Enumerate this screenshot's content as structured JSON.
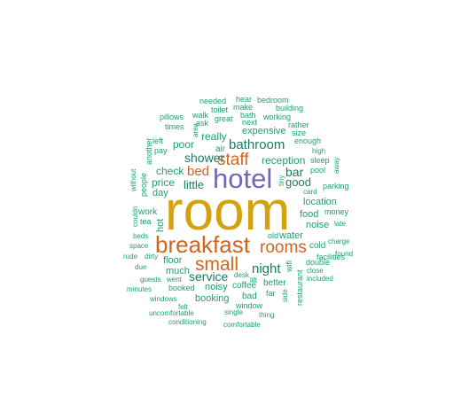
{
  "colors": {
    "gold": "#D4A10F",
    "purple": "#7468B6",
    "orange": "#D2641B",
    "green": "#1D9E74",
    "darkgreen": "#1B7B63"
  },
  "words": [
    {
      "text": "room",
      "color": "gold"
    },
    {
      "text": "hotel",
      "color": "purple"
    },
    {
      "text": "breakfast",
      "color": "orange"
    },
    {
      "text": "small",
      "color": "orange"
    },
    {
      "text": "staff",
      "color": "orange"
    },
    {
      "text": "rooms",
      "color": "orange"
    },
    {
      "text": "bed",
      "color": "orange"
    },
    {
      "text": "bathroom",
      "color": "darkgreen"
    },
    {
      "text": "shower",
      "color": "darkgreen"
    },
    {
      "text": "night",
      "color": "darkgreen"
    },
    {
      "text": "service",
      "color": "darkgreen"
    },
    {
      "text": "little",
      "color": "darkgreen"
    },
    {
      "text": "bar",
      "color": "darkgreen"
    },
    {
      "text": "good",
      "color": "darkgreen"
    },
    {
      "text": "reception",
      "color": "green"
    },
    {
      "text": "check",
      "color": "green"
    },
    {
      "text": "price",
      "color": "green"
    },
    {
      "text": "really",
      "color": "green"
    },
    {
      "text": "poor",
      "color": "green"
    },
    {
      "text": "expensive",
      "color": "green"
    },
    {
      "text": "location",
      "color": "green"
    },
    {
      "text": "food",
      "color": "green"
    },
    {
      "text": "noise",
      "color": "green"
    },
    {
      "text": "water",
      "color": "green"
    },
    {
      "text": "floor",
      "color": "green"
    },
    {
      "text": "much",
      "color": "green"
    },
    {
      "text": "booking",
      "color": "green"
    },
    {
      "text": "noisy",
      "color": "green"
    },
    {
      "text": "coffee",
      "color": "green"
    },
    {
      "text": "better",
      "color": "green"
    },
    {
      "text": "work",
      "color": "green"
    },
    {
      "text": "day",
      "color": "green"
    },
    {
      "text": "air",
      "color": "green"
    },
    {
      "text": "hot",
      "color": "green"
    },
    {
      "text": "tea",
      "color": "green"
    },
    {
      "text": "cold",
      "color": "green"
    },
    {
      "text": "pool",
      "color": "green"
    },
    {
      "text": "parking",
      "color": "green"
    },
    {
      "text": "facilities",
      "color": "green"
    },
    {
      "text": "double",
      "color": "green"
    },
    {
      "text": "restaurant",
      "color": "green"
    },
    {
      "text": "wifi",
      "color": "green"
    },
    {
      "text": "window",
      "color": "green"
    },
    {
      "text": "bad",
      "color": "green"
    },
    {
      "text": "far",
      "color": "green"
    },
    {
      "text": "lift",
      "color": "green"
    },
    {
      "text": "old",
      "color": "green"
    },
    {
      "text": "money",
      "color": "green"
    },
    {
      "text": "late",
      "color": "green"
    },
    {
      "text": "charge",
      "color": "green"
    },
    {
      "text": "found",
      "color": "green"
    },
    {
      "text": "close",
      "color": "green"
    },
    {
      "text": "included",
      "color": "green"
    },
    {
      "text": "card",
      "color": "green"
    },
    {
      "text": "sleep",
      "color": "green"
    },
    {
      "text": "away",
      "color": "green"
    },
    {
      "text": "high",
      "color": "green"
    },
    {
      "text": "enough",
      "color": "green"
    },
    {
      "text": "size",
      "color": "green"
    },
    {
      "text": "rather",
      "color": "green"
    },
    {
      "text": "working",
      "color": "green"
    },
    {
      "text": "building",
      "color": "green"
    },
    {
      "text": "bedroom",
      "color": "green"
    },
    {
      "text": "hear",
      "color": "green"
    },
    {
      "text": "needed",
      "color": "green"
    },
    {
      "text": "make",
      "color": "green"
    },
    {
      "text": "toilet",
      "color": "green"
    },
    {
      "text": "bath",
      "color": "green"
    },
    {
      "text": "walk",
      "color": "green"
    },
    {
      "text": "ask",
      "color": "green"
    },
    {
      "text": "great",
      "color": "green"
    },
    {
      "text": "next",
      "color": "green"
    },
    {
      "text": "pillows",
      "color": "green"
    },
    {
      "text": "times",
      "color": "green"
    },
    {
      "text": "area",
      "color": "green"
    },
    {
      "text": "left",
      "color": "green"
    },
    {
      "text": "pay",
      "color": "green"
    },
    {
      "text": "another",
      "color": "green"
    },
    {
      "text": "tiny",
      "color": "green"
    },
    {
      "text": "without",
      "color": "green"
    },
    {
      "text": "people",
      "color": "green"
    },
    {
      "text": "couldn",
      "color": "green"
    },
    {
      "text": "beds",
      "color": "green"
    },
    {
      "text": "space",
      "color": "green"
    },
    {
      "text": "rude",
      "color": "green"
    },
    {
      "text": "dirty",
      "color": "green"
    },
    {
      "text": "due",
      "color": "green"
    },
    {
      "text": "guests",
      "color": "green"
    },
    {
      "text": "went",
      "color": "green"
    },
    {
      "text": "booked",
      "color": "green"
    },
    {
      "text": "minutes",
      "color": "green"
    },
    {
      "text": "windows",
      "color": "green"
    },
    {
      "text": "felt",
      "color": "green"
    },
    {
      "text": "uncomfortable",
      "color": "green"
    },
    {
      "text": "conditioning",
      "color": "green"
    },
    {
      "text": "single",
      "color": "green"
    },
    {
      "text": "comfortable",
      "color": "green"
    },
    {
      "text": "thing",
      "color": "green"
    },
    {
      "text": "side",
      "color": "green"
    },
    {
      "text": "desk",
      "color": "green"
    }
  ]
}
